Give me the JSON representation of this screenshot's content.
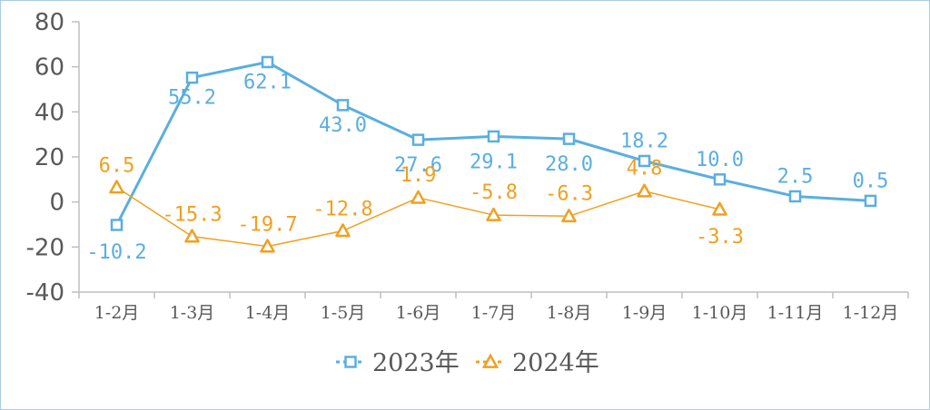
{
  "chart_data": {
    "type": "line",
    "categories": [
      "1-2月",
      "1-3月",
      "1-4月",
      "1-5月",
      "1-6月",
      "1-7月",
      "1-8月",
      "1-9月",
      "1-10月",
      "1-11月",
      "1-12月"
    ],
    "ylim": [
      -40,
      80
    ],
    "yticks": [
      80,
      60,
      40,
      20,
      0,
      -20,
      -40
    ],
    "grid": false,
    "legend_position": "bottom",
    "series": [
      {
        "name": "2023年",
        "color": "#5aaee0",
        "marker": "square",
        "values": [
          -10.2,
          55.2,
          62.1,
          43.0,
          27.6,
          29.1,
          28.0,
          18.2,
          10.0,
          2.5,
          0.5
        ],
        "labels": [
          "-10.2",
          "55.2",
          "62.1",
          "43.0",
          "27.6",
          "29.1",
          "28.0",
          "18.2",
          "10.0",
          "2.5",
          "0.5"
        ]
      },
      {
        "name": "2024年",
        "color": "#f0a020",
        "marker": "triangle",
        "values": [
          6.5,
          -15.3,
          -19.7,
          -12.8,
          1.9,
          -5.8,
          -6.3,
          4.8,
          -3.3,
          null,
          null
        ],
        "labels": [
          "6.5",
          "-15.3",
          "-19.7",
          "-12.8",
          "1.9",
          "-5.8",
          "-6.3",
          "4.8",
          "-3.3",
          "",
          ""
        ]
      }
    ]
  }
}
